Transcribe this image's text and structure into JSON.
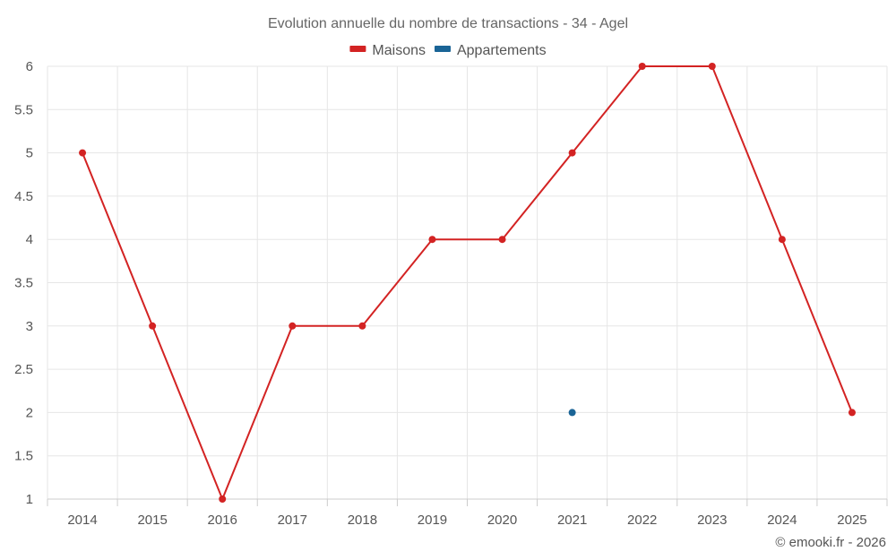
{
  "chart_data": {
    "type": "line",
    "title": "Evolution annuelle du nombre de transactions - 34 - Agel",
    "categories": [
      "2014",
      "2015",
      "2016",
      "2017",
      "2018",
      "2019",
      "2020",
      "2021",
      "2022",
      "2023",
      "2024",
      "2025"
    ],
    "series": [
      {
        "name": "Maisons",
        "color": "#d32323",
        "values": [
          5,
          3,
          1,
          3,
          3,
          4,
          4,
          5,
          6,
          6,
          4,
          2
        ]
      },
      {
        "name": "Appartements",
        "color": "#1a6496",
        "values": [
          null,
          null,
          null,
          null,
          null,
          null,
          null,
          2,
          null,
          null,
          null,
          null
        ]
      }
    ],
    "ylim": [
      1,
      6
    ],
    "yticks": [
      1,
      1.5,
      2,
      2.5,
      3,
      3.5,
      4,
      4.5,
      5,
      5.5,
      6
    ],
    "ytick_labels": [
      "1",
      "1.5",
      "2",
      "2.5",
      "3",
      "3.5",
      "4",
      "4.5",
      "5",
      "5.5",
      "6"
    ],
    "xlabel": "",
    "ylabel": "",
    "grid": true,
    "legend": "top-center"
  },
  "credit": "© emooki.fr - 2026"
}
